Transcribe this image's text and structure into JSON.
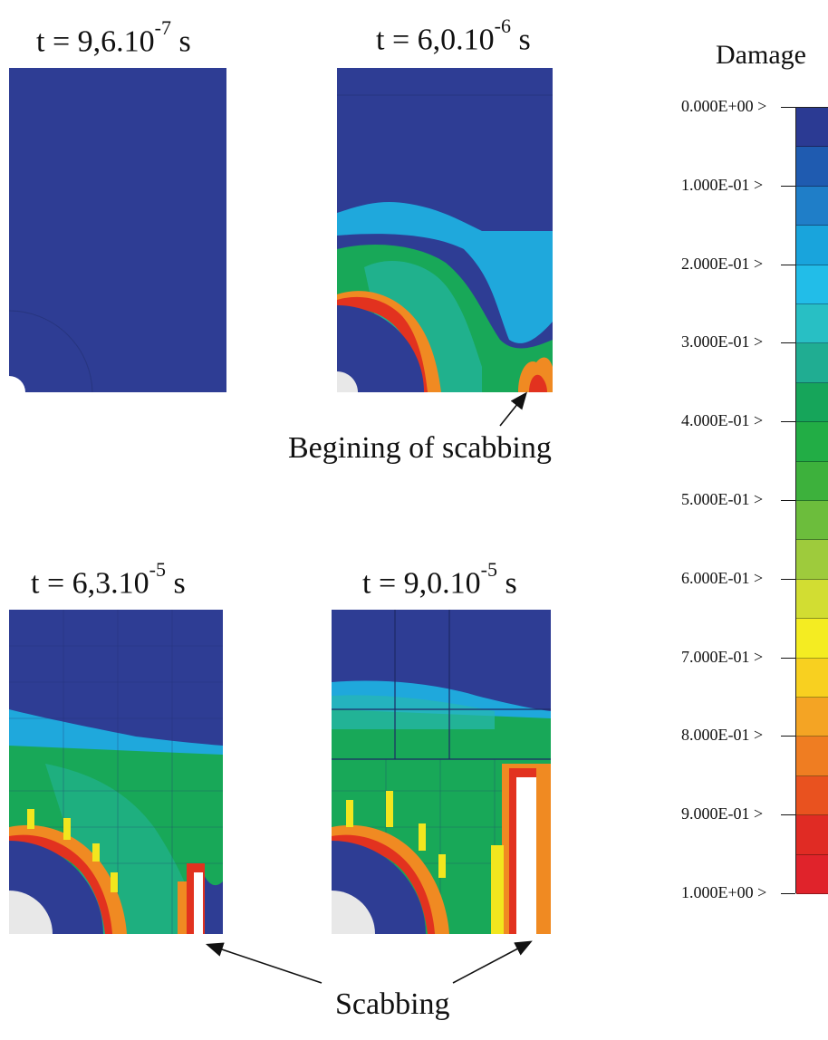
{
  "panels": [
    {
      "id": "p1",
      "time_base": "t = 9,6.10",
      "time_exp": "-7",
      "time_unit": " s"
    },
    {
      "id": "p2",
      "time_base": "t = 6,0.10",
      "time_exp": "-6",
      "time_unit": " s"
    },
    {
      "id": "p3",
      "time_base": "t = 6,3.10",
      "time_exp": "-5",
      "time_unit": " s"
    },
    {
      "id": "p4",
      "time_base": "t = 9,0.10",
      "time_exp": "-5",
      "time_unit": " s"
    }
  ],
  "annotations": {
    "begin_scabbing": "Begining of scabbing",
    "scabbing": "Scabbing"
  },
  "colorbar": {
    "title": "Damage",
    "ticks": [
      "0.000E+00 >",
      "1.000E-01 >",
      "2.000E-01 >",
      "3.000E-01 >",
      "4.000E-01 >",
      "5.000E-01 >",
      "6.000E-01 >",
      "7.000E-01 >",
      "8.000E-01 >",
      "9.000E-01 >",
      "1.000E+00 >"
    ],
    "band_colors": [
      "#2b3a93",
      "#1f5bb0",
      "#1f7ec8",
      "#19a4dc",
      "#22bde8",
      "#28bfc4",
      "#20ad92",
      "#16a55a",
      "#22ad45",
      "#3db13c",
      "#6cbd3c",
      "#9ecb3c",
      "#d2dd32",
      "#f4ec22",
      "#f8d020",
      "#f4a424",
      "#ef7d22",
      "#e9521f",
      "#e02b24",
      "#e0232b"
    ]
  },
  "palette": {
    "blue": "#2e3d94",
    "cyan": "#1fa8dc",
    "teal": "#26b8b0",
    "green": "#18a858",
    "yellow": "#f2e61e",
    "orange": "#f08a22",
    "red": "#e2321f",
    "white": "#ffffff"
  }
}
